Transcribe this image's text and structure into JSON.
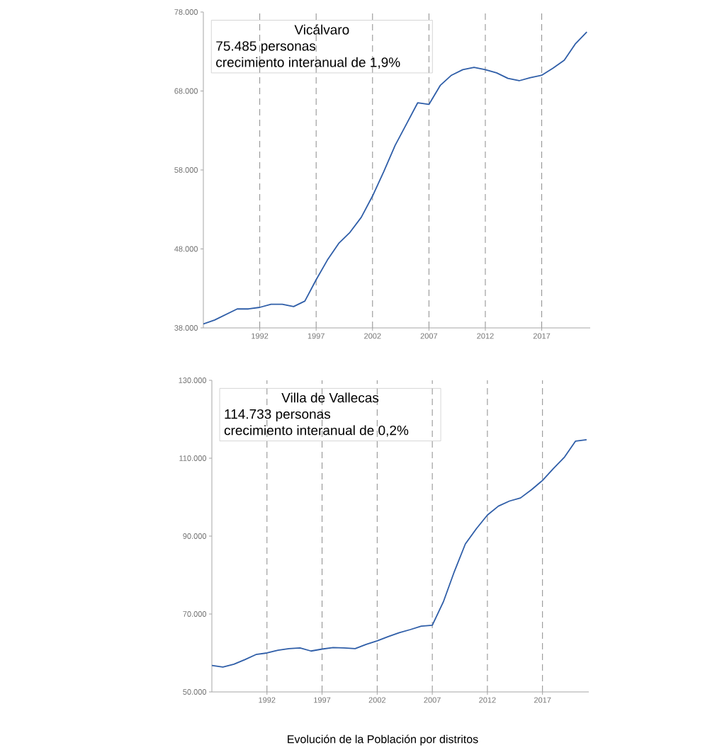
{
  "chart_data": [
    {
      "type": "line",
      "title": "Vicálvaro",
      "annotations": [
        "75.485 personas",
        "crecimiento interanual de 1,9%"
      ],
      "color": "#2f5ea8",
      "grid": "x",
      "x": [
        1987,
        1988,
        1989,
        1990,
        1991,
        1992,
        1993,
        1994,
        1995,
        1996,
        1997,
        1998,
        1999,
        2000,
        2001,
        2002,
        2003,
        2004,
        2005,
        2006,
        2007,
        2008,
        2009,
        2010,
        2011,
        2012,
        2013,
        2014,
        2015,
        2016,
        2017,
        2018,
        2019,
        2020,
        2021
      ],
      "values": [
        38500,
        39000,
        39700,
        40400,
        40400,
        40600,
        41000,
        41000,
        40700,
        41400,
        44100,
        46600,
        48700,
        50100,
        52000,
        54700,
        57800,
        61100,
        63800,
        66500,
        66300,
        68700,
        70000,
        70700,
        71000,
        70700,
        70300,
        69600,
        69300,
        69700,
        70000,
        70900,
        71900,
        74000,
        75485
      ],
      "xlim": [
        1987,
        2021.3
      ],
      "ylim": [
        38000,
        78000
      ],
      "xticks": [
        1992,
        1997,
        2002,
        2007,
        2012,
        2017
      ],
      "yticks": [
        {
          "value": 38000,
          "label": "38.000"
        },
        {
          "value": 48000,
          "label": "48.000"
        },
        {
          "value": 58000,
          "label": "58.000"
        },
        {
          "value": 68000,
          "label": "68.000"
        },
        {
          "value": 78000,
          "label": "78.000"
        }
      ]
    },
    {
      "type": "line",
      "title": "Villa de Vallecas",
      "annotations": [
        "114.733 personas",
        "crecimiento interanual de 0,2%",
        "Evolución de la Población por distritos"
      ],
      "color": "#2f5ea8",
      "grid": "x",
      "x": [
        1987,
        1988,
        1989,
        1990,
        1991,
        1992,
        1993,
        1994,
        1995,
        1996,
        1997,
        1998,
        1999,
        2000,
        2001,
        2002,
        2003,
        2004,
        2005,
        2006,
        2007,
        2008,
        2009,
        2010,
        2011,
        2012,
        2013,
        2014,
        2015,
        2016,
        2017,
        2018,
        2019,
        2020,
        2021
      ],
      "values": [
        56800,
        56400,
        57100,
        58300,
        59600,
        60000,
        60700,
        61100,
        61300,
        60500,
        61000,
        61400,
        61300,
        61100,
        62200,
        63100,
        64200,
        65200,
        66000,
        66900,
        67100,
        73100,
        80900,
        88000,
        91900,
        95400,
        97700,
        99000,
        99800,
        101900,
        104300,
        107400,
        110300,
        114400,
        114733
      ],
      "xlim": [
        1987,
        2021.2
      ],
      "ylim": [
        50000,
        130000
      ],
      "xticks": [
        1992,
        1997,
        2002,
        2007,
        2012,
        2017
      ],
      "yticks": [
        {
          "value": 50000,
          "label": "50.000"
        },
        {
          "value": 70000,
          "label": "70.000"
        },
        {
          "value": 90000,
          "label": "90.000"
        },
        {
          "value": 110000,
          "label": "110.000"
        },
        {
          "value": 130000,
          "label": "130.000"
        }
      ]
    }
  ]
}
